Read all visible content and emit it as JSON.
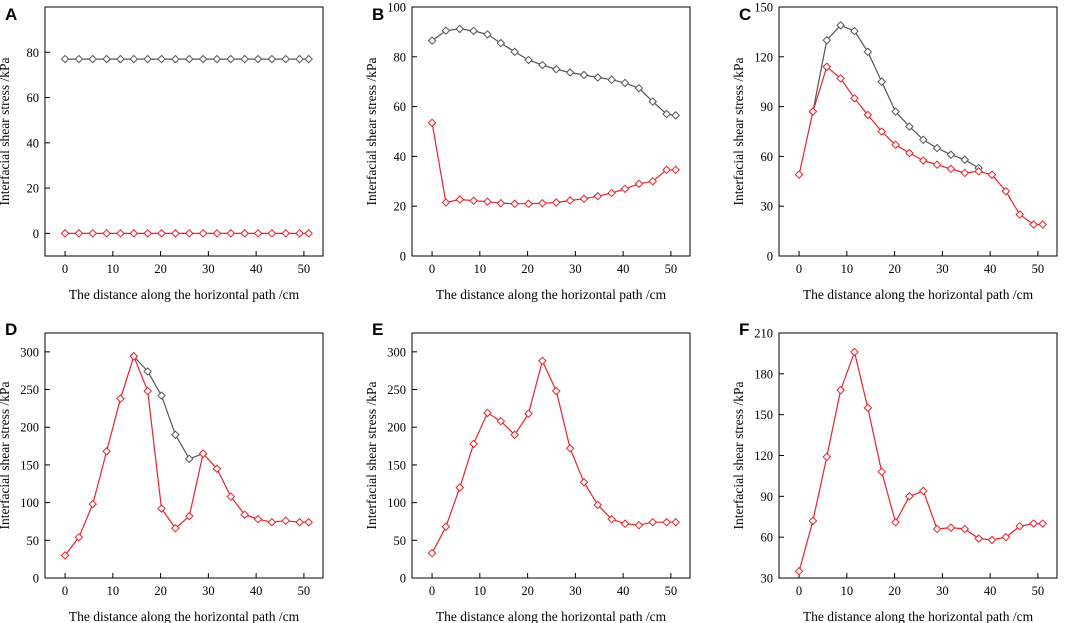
{
  "colors": {
    "gray_series": "#555555",
    "red_series": "#e8242b",
    "axis": "#000000"
  },
  "chart_data": [
    {
      "panel": "A",
      "type": "line",
      "xlabel": "The distance along the horizontal path /cm",
      "ylabel": "Interfacial shear stress /kPa",
      "xlim": [
        -4.2,
        54
      ],
      "ylim": [
        -10,
        100
      ],
      "xticks": [
        0,
        10,
        20,
        30,
        40,
        50
      ],
      "yticks": [
        0,
        20,
        40,
        60,
        80
      ],
      "series": [
        {
          "name": "gray",
          "color": "#555555",
          "x": [
            0,
            2.9,
            5.8,
            8.7,
            11.6,
            14.4,
            17.3,
            20.2,
            23.1,
            26,
            28.9,
            31.8,
            34.7,
            37.6,
            40.4,
            43.3,
            46.2,
            49.1,
            51
          ],
          "y": [
            77,
            77,
            77,
            77,
            77,
            77,
            77,
            77,
            77,
            77,
            77,
            77,
            77,
            77,
            77,
            77,
            77,
            77,
            77
          ]
        },
        {
          "name": "red",
          "color": "#e8242b",
          "x": [
            0,
            2.9,
            5.8,
            8.7,
            11.6,
            14.4,
            17.3,
            20.2,
            23.1,
            26,
            28.9,
            31.8,
            34.7,
            37.6,
            40.4,
            43.3,
            46.2,
            49.1,
            51
          ],
          "y": [
            0,
            0,
            0,
            0,
            0,
            0,
            0,
            0,
            0,
            0,
            0,
            0,
            0,
            0,
            0,
            0,
            0,
            0,
            0
          ]
        }
      ]
    },
    {
      "panel": "B",
      "type": "line",
      "xlabel": "The distance along the horizontal path /cm",
      "ylabel": "Interfacial shear stress /kPa",
      "xlim": [
        -4.2,
        54
      ],
      "ylim": [
        0,
        100
      ],
      "xticks": [
        0,
        10,
        20,
        30,
        40,
        50
      ],
      "yticks": [
        0,
        20,
        40,
        60,
        80,
        100
      ],
      "series": [
        {
          "name": "gray",
          "color": "#555555",
          "x": [
            0,
            2.9,
            5.8,
            8.7,
            11.6,
            14.4,
            17.3,
            20.2,
            23.1,
            26,
            28.9,
            31.8,
            34.7,
            37.6,
            40.4,
            43.3,
            46.2,
            49.1,
            51
          ],
          "y": [
            86.5,
            90.5,
            91.2,
            90.4,
            89,
            85.5,
            82,
            78.7,
            76.7,
            75,
            73.7,
            72.7,
            71.7,
            70.8,
            69.5,
            67.4,
            62,
            57,
            56.5
          ]
        },
        {
          "name": "red",
          "color": "#e8242b",
          "x": [
            0,
            2.9,
            5.8,
            8.7,
            11.6,
            14.4,
            17.3,
            20.2,
            23.1,
            26,
            28.9,
            31.8,
            34.7,
            37.6,
            40.4,
            43.3,
            46.2,
            49.1,
            51
          ],
          "y": [
            53.5,
            21.5,
            22.7,
            22.2,
            21.8,
            21.2,
            21,
            21,
            21.2,
            21.5,
            22.3,
            23,
            24,
            25.3,
            27,
            29,
            30,
            34.6,
            34.6
          ]
        }
      ]
    },
    {
      "panel": "C",
      "type": "line",
      "xlabel": "The distance along the horizontal path /cm",
      "ylabel": "Interfacial shear stress /kPa",
      "xlim": [
        -4.2,
        54
      ],
      "ylim": [
        0,
        150
      ],
      "xticks": [
        0,
        10,
        20,
        30,
        40,
        50
      ],
      "yticks": [
        0,
        30,
        60,
        90,
        120,
        150
      ],
      "series": [
        {
          "name": "gray",
          "color": "#555555",
          "x": [
            2.9,
            5.8,
            8.7,
            11.6,
            14.4,
            17.3,
            20.2,
            23.1,
            26,
            28.9,
            31.8,
            34.7,
            37.6
          ],
          "y": [
            87,
            130,
            139,
            135.5,
            123,
            105,
            87,
            78,
            70,
            65,
            61,
            58,
            53
          ]
        },
        {
          "name": "red",
          "color": "#e8242b",
          "x": [
            0,
            2.9,
            5.8,
            8.7,
            11.6,
            14.4,
            17.3,
            20.2,
            23.1,
            26,
            28.9,
            31.8,
            34.7,
            37.6,
            40.4,
            43.3,
            46.2,
            49.1,
            51
          ],
          "y": [
            49,
            87,
            114,
            107,
            95,
            85,
            75,
            67,
            62,
            57.5,
            55,
            52.5,
            50,
            51,
            49,
            39,
            25,
            19,
            19
          ]
        }
      ]
    },
    {
      "panel": "D",
      "type": "line",
      "xlabel": "The distance along the horizontal path /cm",
      "ylabel": "Interfacial shear stress /kPa",
      "xlim": [
        -4.2,
        54
      ],
      "ylim": [
        0,
        325
      ],
      "xticks": [
        0,
        10,
        20,
        30,
        40,
        50
      ],
      "yticks": [
        0,
        50,
        100,
        150,
        200,
        250,
        300
      ],
      "series": [
        {
          "name": "gray",
          "color": "#555555",
          "x": [
            14.4,
            17.3,
            20.2,
            23.1,
            26,
            28.9
          ],
          "y": [
            294,
            274,
            242,
            190,
            158,
            165
          ]
        },
        {
          "name": "red",
          "color": "#e8242b",
          "x": [
            0,
            2.9,
            5.8,
            8.7,
            11.6,
            14.4,
            17.3,
            20.2,
            23.1,
            26,
            28.9,
            31.8,
            34.7,
            37.6,
            40.4,
            43.3,
            46.2,
            49.1,
            51
          ],
          "y": [
            30,
            54,
            98,
            168,
            238,
            294,
            248,
            92,
            66,
            82,
            165,
            145,
            108,
            84,
            78,
            74,
            76,
            74,
            74
          ]
        }
      ]
    },
    {
      "panel": "E",
      "type": "line",
      "xlabel": "The distance along the horizontal path /cm",
      "ylabel": "Interfacial shear stress /kPa",
      "xlim": [
        -4.2,
        54
      ],
      "ylim": [
        0,
        325
      ],
      "xticks": [
        0,
        10,
        20,
        30,
        40,
        50
      ],
      "yticks": [
        0,
        50,
        100,
        150,
        200,
        250,
        300
      ],
      "series": [
        {
          "name": "red",
          "color": "#e8242b",
          "x": [
            0,
            2.9,
            5.8,
            8.7,
            11.6,
            14.4,
            17.3,
            20.2,
            23.1,
            26,
            28.9,
            31.8,
            34.7,
            37.6,
            40.4,
            43.3,
            46.2,
            49.1,
            51
          ],
          "y": [
            33,
            68,
            120,
            178,
            219,
            208,
            190,
            218,
            288,
            248,
            172,
            127,
            97,
            78,
            72,
            70,
            74,
            74,
            74
          ]
        }
      ]
    },
    {
      "panel": "F",
      "type": "line",
      "xlabel": "The distance along the horizontal path /cm",
      "ylabel": "Interfacial shear stress /kPa",
      "xlim": [
        -4.2,
        54
      ],
      "ylim": [
        30,
        210
      ],
      "xticks": [
        0,
        10,
        20,
        30,
        40,
        50
      ],
      "yticks": [
        30,
        60,
        90,
        120,
        150,
        180,
        210
      ],
      "series": [
        {
          "name": "red",
          "color": "#e8242b",
          "x": [
            0,
            2.9,
            5.8,
            8.7,
            11.6,
            14.4,
            17.3,
            20.2,
            23.1,
            26,
            28.9,
            31.8,
            34.7,
            37.6,
            40.4,
            43.3,
            46.2,
            49.1,
            51
          ],
          "y": [
            35,
            72,
            119,
            168,
            196,
            155,
            108,
            71,
            90,
            94,
            66,
            67,
            66,
            59,
            58,
            60,
            68,
            70,
            70
          ]
        }
      ]
    }
  ]
}
